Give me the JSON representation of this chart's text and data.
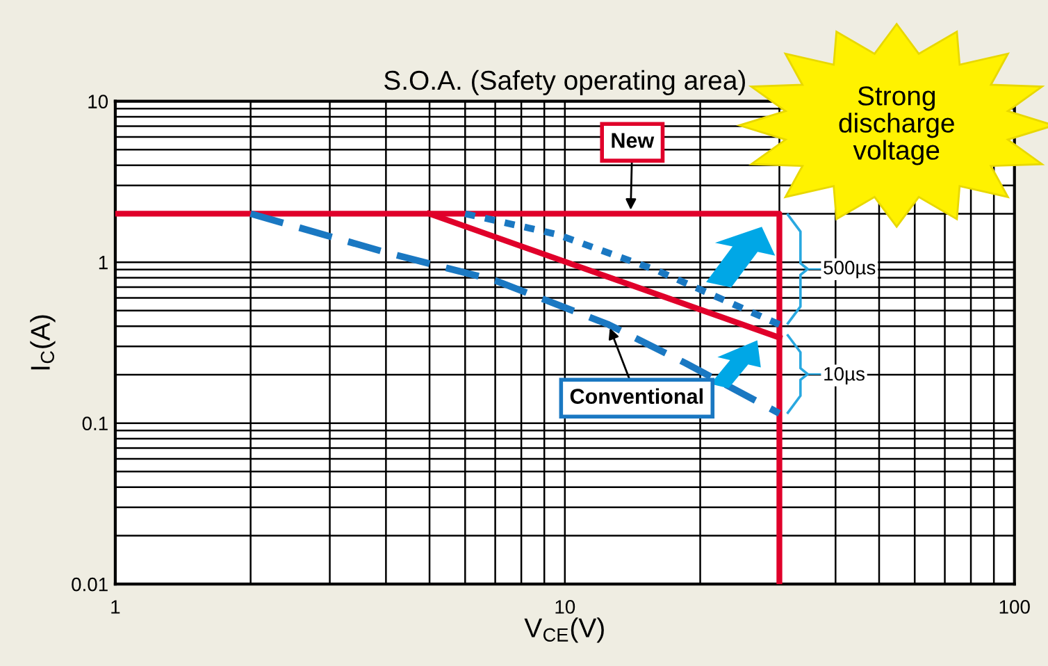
{
  "chart_data": {
    "type": "line",
    "title": "S.O.A. (Safety operating area)",
    "xlabel": "V$_{CE}$(V)",
    "ylabel": "I$_{C}$(A)",
    "log": "xy",
    "xlim": [
      1,
      100
    ],
    "ylim": [
      0.01,
      10
    ],
    "xticks": [
      1,
      10,
      100
    ],
    "yticks": [
      0.01,
      0.1,
      1,
      10
    ],
    "grid": true,
    "series": [
      {
        "color": "#e0002a",
        "line_style": "solid",
        "x": [
          1,
          30,
          30
        ],
        "values": [
          2,
          2,
          0.01
        ]
      },
      {
        "color": "#e0002a",
        "line_style": "solid",
        "x": [
          5,
          30
        ],
        "values": [
          2,
          0.34
        ]
      },
      {
        "color": "#1a78c2",
        "line_style": "dotted",
        "x": [
          6,
          9.6,
          16,
          30
        ],
        "values": [
          2,
          1.49,
          0.89,
          0.41
        ]
      },
      {
        "color": "#1a78c2",
        "line_style": "dashed",
        "x": [
          2,
          4,
          7,
          12.5,
          18.6,
          30
        ],
        "values": [
          2,
          1.15,
          0.77,
          0.41,
          0.235,
          0.115
        ]
      }
    ],
    "annotations": [
      {
        "text": "New",
        "x": 14,
        "y": 2
      },
      {
        "text": "Conventional",
        "x": 12.5,
        "y": 0.41
      },
      "500µs",
      "10µs",
      "Strong\ndischarge\nvoltage"
    ]
  }
}
